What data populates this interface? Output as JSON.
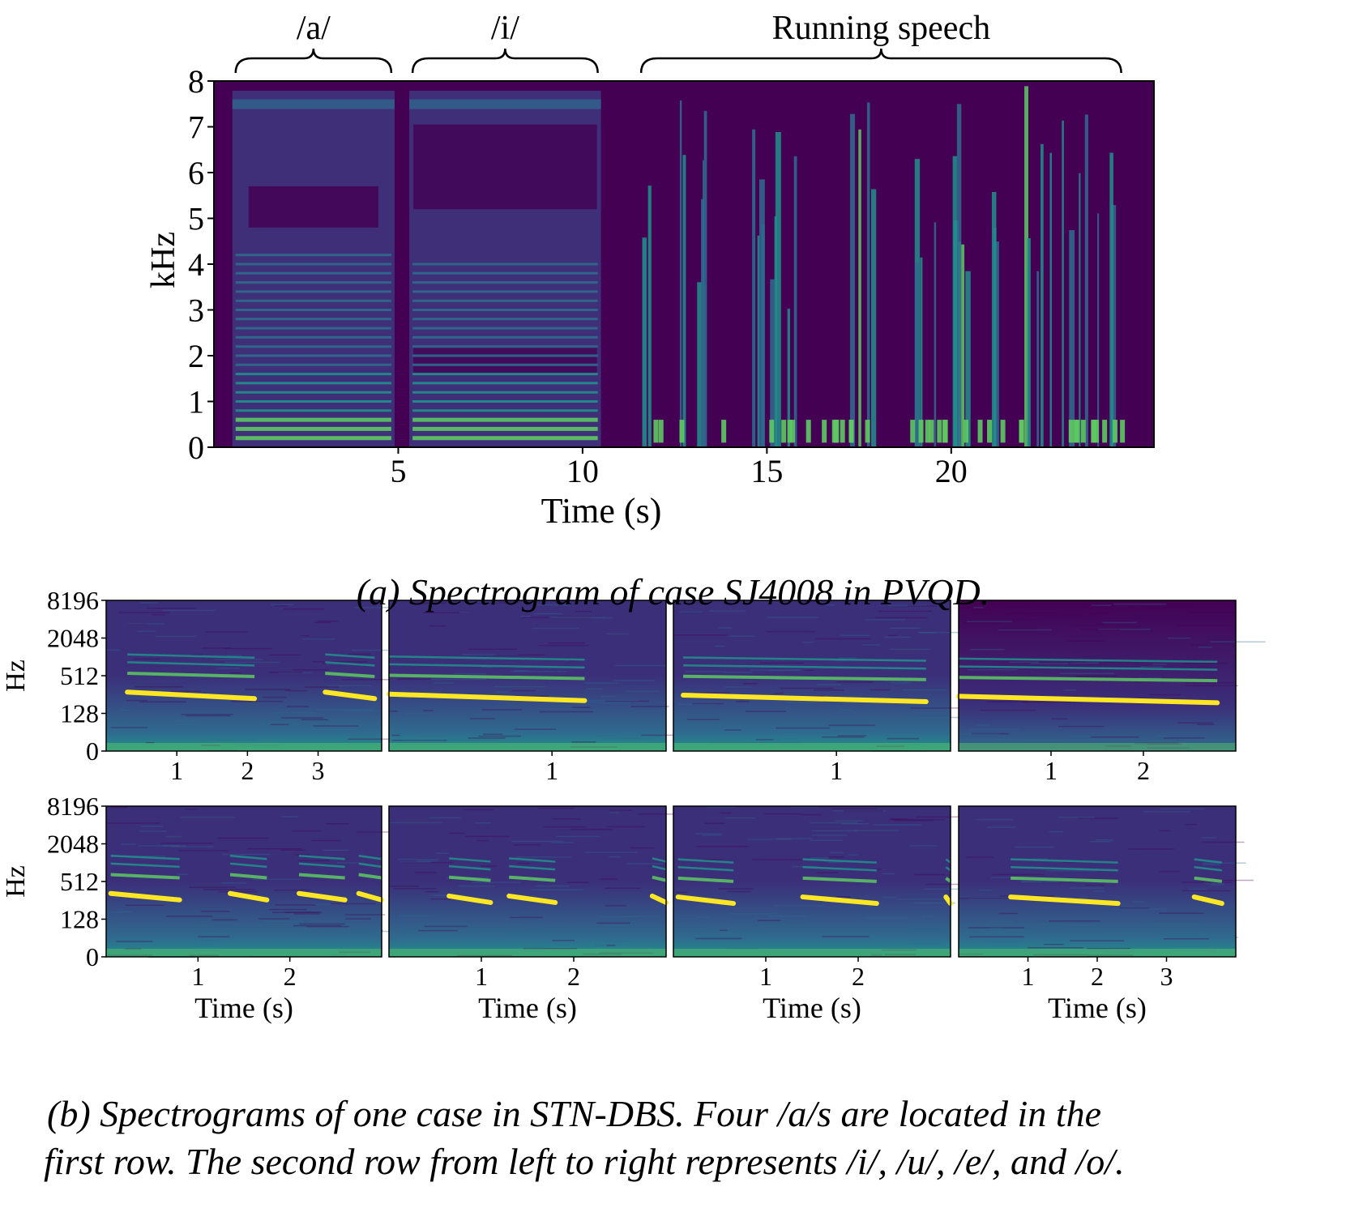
{
  "captions": {
    "a": "(a) Spectrogram of case SJ4008 in PVQD.",
    "b_line1": "(b) Spectrograms of one case in STN-DBS. Four /a/s are located in the",
    "b_line2": "first row. The second row from left to right represents /i/, /u/, /e/, and /o/."
  },
  "colors": {
    "low": "#440154",
    "dark": "#3b2f7a",
    "mid": "#2f6b8e",
    "teal": "#21918c",
    "green": "#5ec962",
    "high": "#fde725"
  },
  "chart_data": [
    {
      "id": "pvqd",
      "type": "heatmap",
      "colormap": "viridis",
      "xlabel": "Time (s)",
      "ylabel": "kHz",
      "xlim": [
        0,
        25.5
      ],
      "ylim": [
        0,
        8
      ],
      "xticks": [
        5,
        10,
        15,
        20
      ],
      "yticks": [
        0,
        1,
        2,
        3,
        4,
        5,
        6,
        7,
        8
      ],
      "segments": [
        {
          "label": "/a/",
          "start": 0.5,
          "end": 4.9,
          "type": "vowel",
          "f0_khz": 0.2,
          "harmonic_top_khz": 4.3
        },
        {
          "label": "/i/",
          "start": 5.3,
          "end": 10.5,
          "type": "vowel",
          "f0_khz": 0.2,
          "harmonic_top_khz": 4.2
        },
        {
          "label": "Running speech",
          "start": 11.5,
          "end": 24.7,
          "type": "speech"
        }
      ]
    },
    {
      "id": "stn-dbs",
      "type": "heatmap",
      "colormap": "viridis",
      "yscale": "symlog",
      "ylabel": "Hz",
      "yticks": [
        0,
        128,
        512,
        2048,
        8196
      ],
      "rows": [
        {
          "xlabel": "",
          "panels": [
            {
              "vowel": "/a/",
              "duration_s": 3.9,
              "xticks": [
                1,
                2,
                3
              ],
              "f0_hz": 280,
              "segments": [
                [
                  0.3,
                  2.1
                ],
                [
                  3.1,
                  3.8
                ]
              ]
            },
            {
              "vowel": "/a/",
              "duration_s": 1.7,
              "xticks": [
                1
              ],
              "f0_hz": 260,
              "segments": [
                [
                  0.0,
                  1.2
                ]
              ]
            },
            {
              "vowel": "/a/",
              "duration_s": 1.7,
              "xticks": [
                1
              ],
              "f0_hz": 250,
              "segments": [
                [
                  0.06,
                  1.55
                ]
              ]
            },
            {
              "vowel": "/a/",
              "duration_s": 3.0,
              "xticks": [
                1,
                2
              ],
              "f0_hz": 240,
              "segments": [
                [
                  0.0,
                  2.8
                ]
              ]
            }
          ]
        },
        {
          "xlabel": "Time (s)",
          "panels": [
            {
              "vowel": "/i/",
              "duration_s": 3.0,
              "xticks": [
                1,
                2
              ],
              "f0_hz": 330,
              "segments": [
                [
                  0.05,
                  0.8
                ],
                [
                  1.35,
                  1.75
                ],
                [
                  2.1,
                  2.6
                ],
                [
                  2.75,
                  3.0
                ]
              ]
            },
            {
              "vowel": "/u/",
              "duration_s": 3.0,
              "xticks": [
                1,
                2
              ],
              "f0_hz": 300,
              "segments": [
                [
                  0.65,
                  1.1
                ],
                [
                  1.3,
                  1.8
                ],
                [
                  2.85,
                  3.0
                ]
              ]
            },
            {
              "vowel": "/e/",
              "duration_s": 3.0,
              "xticks": [
                1,
                2
              ],
              "f0_hz": 290,
              "segments": [
                [
                  0.05,
                  0.65
                ],
                [
                  1.4,
                  2.2
                ],
                [
                  2.95,
                  3.0
                ]
              ]
            },
            {
              "vowel": "/o/",
              "duration_s": 4.0,
              "xticks": [
                1,
                2,
                3
              ],
              "f0_hz": 290,
              "segments": [
                [
                  0.75,
                  2.3
                ],
                [
                  3.4,
                  3.8
                ]
              ]
            }
          ]
        }
      ]
    }
  ]
}
